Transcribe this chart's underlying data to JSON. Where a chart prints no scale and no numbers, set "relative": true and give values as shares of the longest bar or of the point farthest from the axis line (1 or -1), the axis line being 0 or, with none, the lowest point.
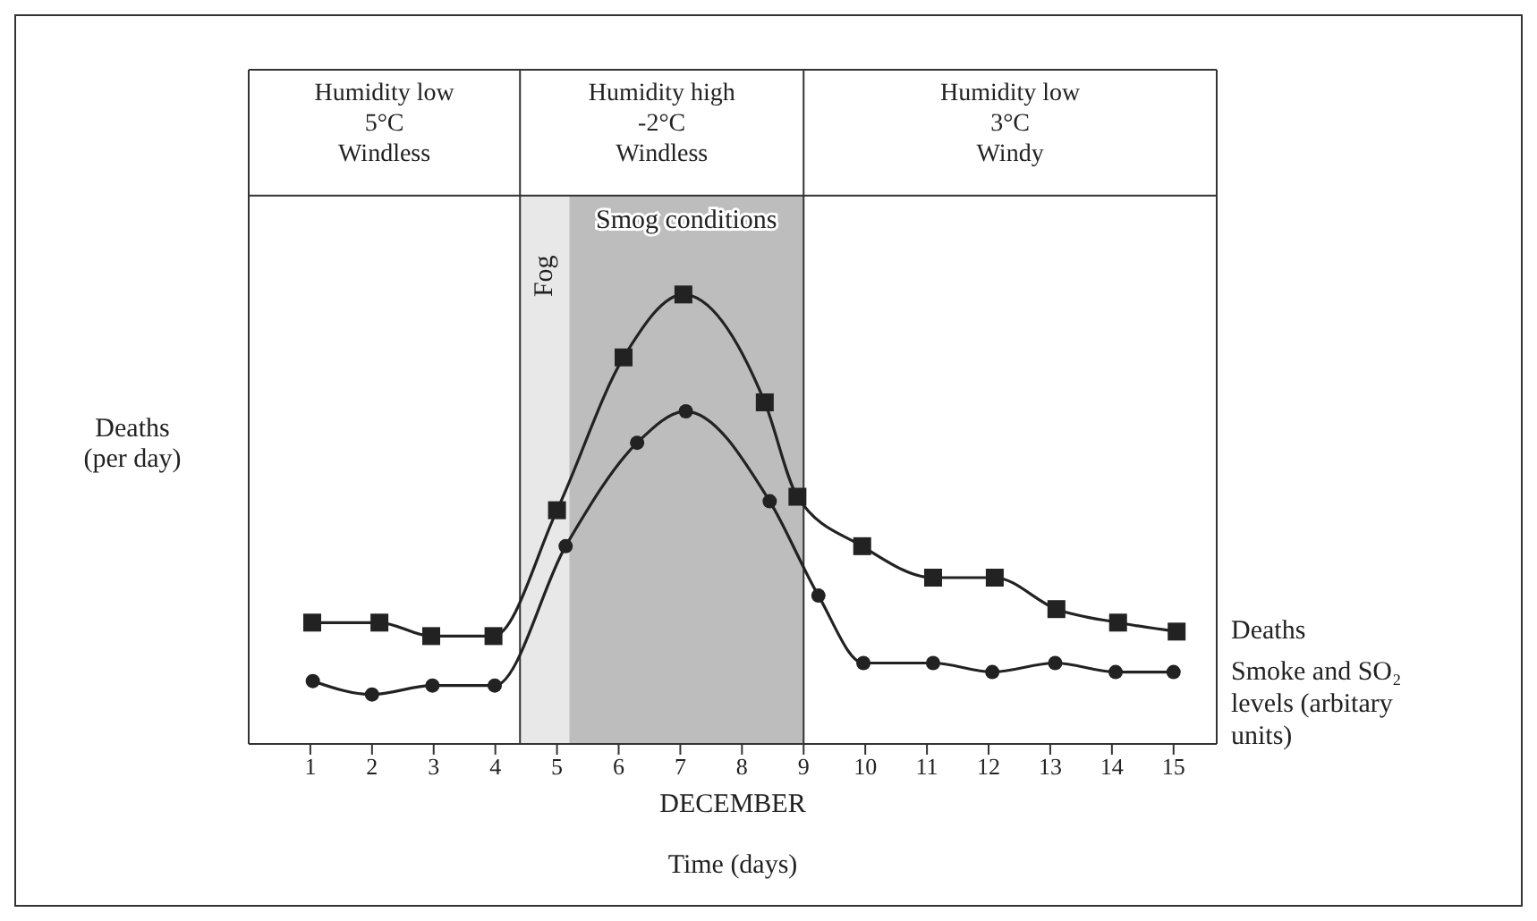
{
  "chart_data": {
    "type": "line",
    "relative": true,
    "xlabel": "Time (days)",
    "ylabel": "Deaths\n(per day)",
    "xlim": [
      0,
      15.7
    ],
    "xticks": [
      1,
      2,
      3,
      4,
      5,
      6,
      7,
      8,
      9,
      10,
      11,
      12,
      13,
      14,
      15
    ],
    "line_style": "solid",
    "series": [
      {
        "name": "Deaths",
        "color": "#222222",
        "marker": "square",
        "x": [
          1.03,
          2.12,
          2.96,
          3.97,
          5.0,
          6.08,
          7.05,
          8.37,
          8.9,
          9.95,
          11.1,
          12.1,
          13.1,
          14.1,
          15.05
        ],
        "values": [
          0.27,
          0.27,
          0.24,
          0.24,
          0.52,
          0.86,
          1,
          0.76,
          0.55,
          0.44,
          0.37,
          0.37,
          0.3,
          0.27,
          0.25
        ]
      },
      {
        "name": "Smoke and SO₂ levels (arbitary units)",
        "color": "#222222",
        "marker": "circle",
        "x": [
          1.04,
          2.0,
          2.98,
          3.99,
          5.14,
          6.3,
          7.09,
          8.45,
          9.24,
          9.97,
          11.1,
          12.06,
          13.08,
          14.06,
          15.0
        ],
        "values": [
          0.14,
          0.11,
          0.13,
          0.13,
          0.44,
          0.67,
          0.74,
          0.54,
          0.33,
          0.18,
          0.18,
          0.16,
          0.18,
          0.16,
          0.16
        ]
      }
    ],
    "bands": [
      {
        "axis": "x",
        "from": 4.4,
        "to": 5.2,
        "label": "Fog",
        "color": "#e8e8e8"
      },
      {
        "axis": "x",
        "from": 5.2,
        "to": 9,
        "label": "Smog conditions",
        "color": "#bdbdbd"
      }
    ],
    "annotations": [
      "Humidity low\n5°C\nWindless",
      "Humidity high\n-2°C\nWindless",
      "Humidity low\n3°C\nWindy",
      "DECEMBER"
    ]
  }
}
